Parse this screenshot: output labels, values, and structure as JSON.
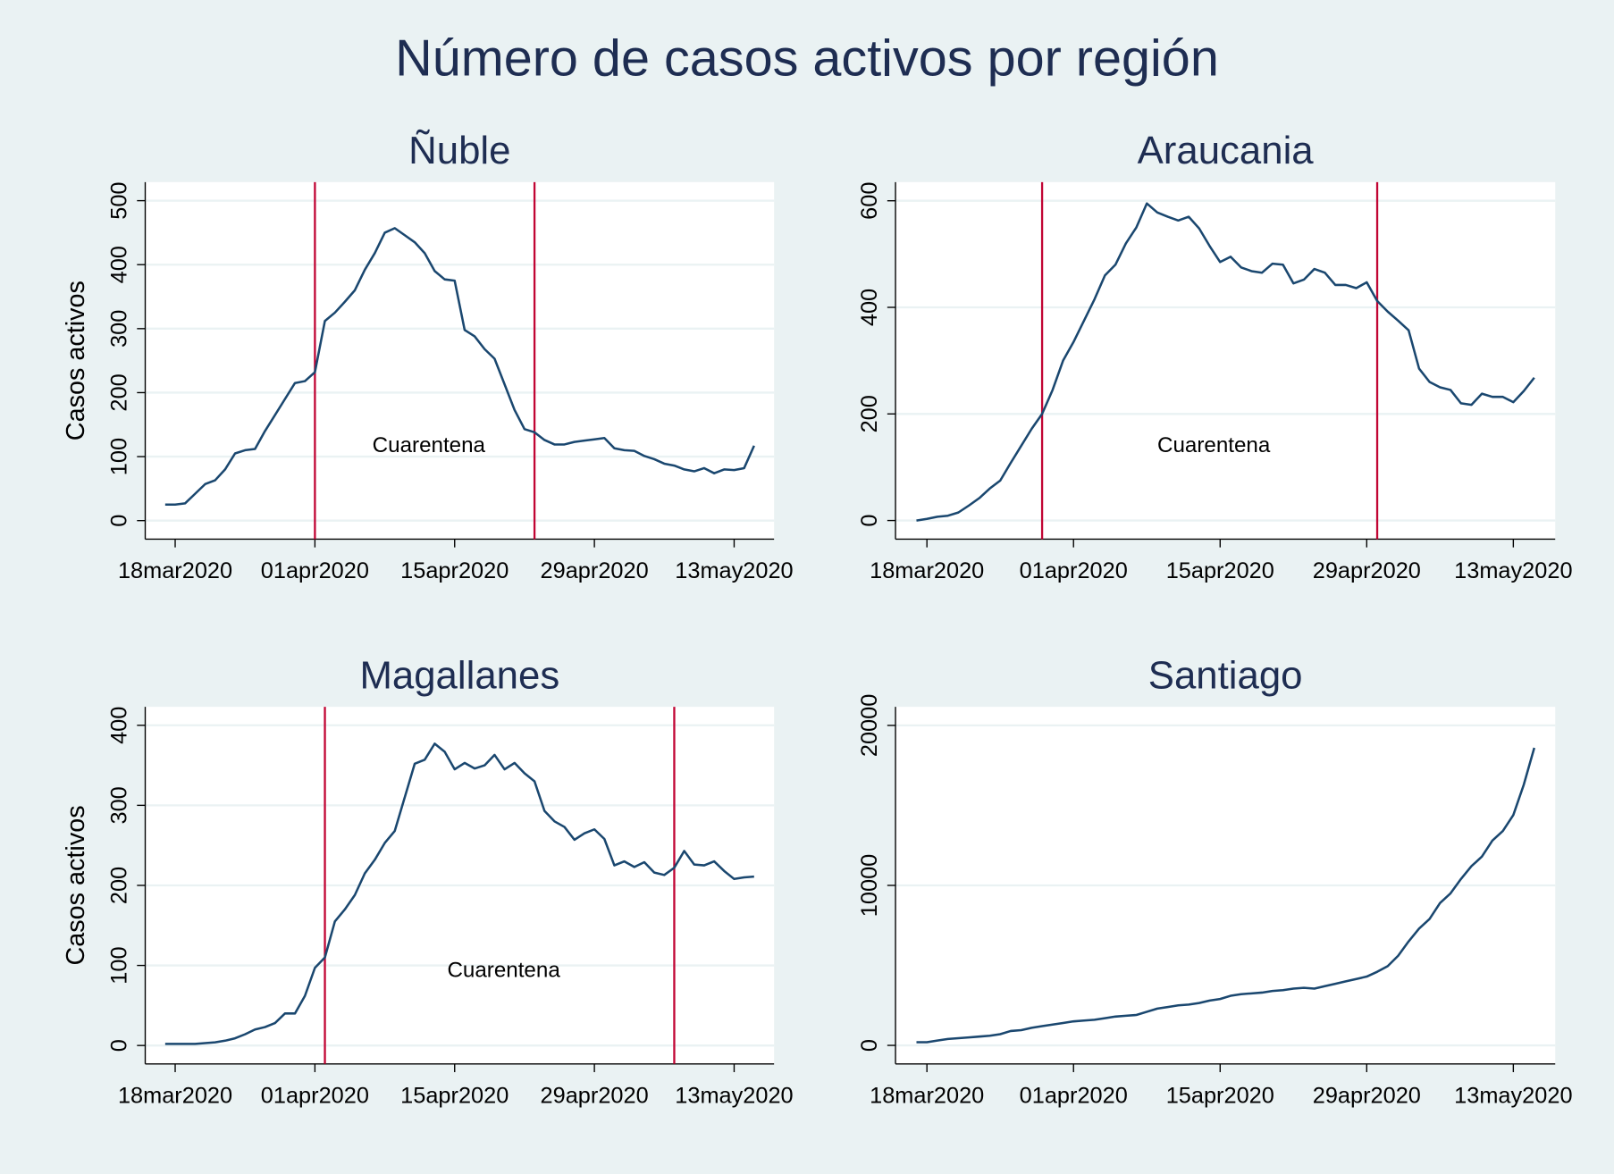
{
  "chart_data": [
    {
      "type": "line",
      "title": "Ñuble",
      "ylabel": "Casos activos",
      "annotation": "Cuarentena",
      "x": [
        "2020-03-17",
        "2020-03-18",
        "2020-03-19",
        "2020-03-20",
        "2020-03-21",
        "2020-03-22",
        "2020-03-23",
        "2020-03-24",
        "2020-03-25",
        "2020-03-26",
        "2020-03-27",
        "2020-03-28",
        "2020-03-29",
        "2020-03-30",
        "2020-03-31",
        "2020-04-01",
        "2020-04-02",
        "2020-04-03",
        "2020-04-04",
        "2020-04-05",
        "2020-04-06",
        "2020-04-07",
        "2020-04-08",
        "2020-04-09",
        "2020-04-10",
        "2020-04-11",
        "2020-04-12",
        "2020-04-13",
        "2020-04-14",
        "2020-04-15",
        "2020-04-16",
        "2020-04-17",
        "2020-04-18",
        "2020-04-19",
        "2020-04-20",
        "2020-04-21",
        "2020-04-22",
        "2020-04-23",
        "2020-04-24",
        "2020-04-25",
        "2020-04-26",
        "2020-04-27",
        "2020-04-28",
        "2020-04-29",
        "2020-04-30",
        "2020-05-01",
        "2020-05-02",
        "2020-05-03",
        "2020-05-04",
        "2020-05-05",
        "2020-05-06",
        "2020-05-07",
        "2020-05-08",
        "2020-05-09",
        "2020-05-10",
        "2020-05-11",
        "2020-05-12",
        "2020-05-13",
        "2020-05-14",
        "2020-05-15"
      ],
      "series": [
        {
          "name": "Casos activos",
          "color": "#1a476f",
          "values": [
            25,
            25,
            27,
            42,
            57,
            63,
            80,
            105,
            110,
            112,
            140,
            165,
            190,
            215,
            218,
            232,
            312,
            325,
            342,
            360,
            392,
            418,
            450,
            457,
            446,
            435,
            418,
            390,
            377,
            375,
            298,
            288,
            268,
            253,
            213,
            173,
            143,
            138,
            126,
            119,
            119,
            123,
            125,
            127,
            129,
            113,
            110,
            109,
            101,
            96,
            89,
            86,
            80,
            77,
            82,
            74,
            80,
            79,
            82,
            117
          ]
        }
      ],
      "vlines": [
        "2020-04-01",
        "2020-04-23"
      ],
      "vline_color": "#c10534",
      "xlim": [
        "2020-03-15",
        "2020-05-17"
      ],
      "xticks": [
        {
          "value": "2020-03-18",
          "label": "18mar2020"
        },
        {
          "value": "2020-04-01",
          "label": "01apr2020"
        },
        {
          "value": "2020-04-15",
          "label": "15apr2020"
        },
        {
          "value": "2020-04-29",
          "label": "29apr2020"
        },
        {
          "value": "2020-05-13",
          "label": "13may2020"
        }
      ],
      "ylim": [
        -29,
        529
      ],
      "yticks": [
        0,
        100,
        200,
        300,
        400,
        500
      ],
      "grid": true
    },
    {
      "type": "line",
      "title": "Araucania",
      "annotation": "Cuarentena",
      "x": [
        "2020-03-17",
        "2020-03-18",
        "2020-03-19",
        "2020-03-20",
        "2020-03-21",
        "2020-03-22",
        "2020-03-23",
        "2020-03-24",
        "2020-03-25",
        "2020-03-26",
        "2020-03-27",
        "2020-03-28",
        "2020-03-29",
        "2020-03-30",
        "2020-03-31",
        "2020-04-01",
        "2020-04-02",
        "2020-04-03",
        "2020-04-04",
        "2020-04-05",
        "2020-04-06",
        "2020-04-07",
        "2020-04-08",
        "2020-04-09",
        "2020-04-10",
        "2020-04-11",
        "2020-04-12",
        "2020-04-13",
        "2020-04-14",
        "2020-04-15",
        "2020-04-16",
        "2020-04-17",
        "2020-04-18",
        "2020-04-19",
        "2020-04-20",
        "2020-04-21",
        "2020-04-22",
        "2020-04-23",
        "2020-04-24",
        "2020-04-25",
        "2020-04-26",
        "2020-04-27",
        "2020-04-28",
        "2020-04-29",
        "2020-04-30",
        "2020-05-01",
        "2020-05-02",
        "2020-05-03",
        "2020-05-04",
        "2020-05-05",
        "2020-05-06",
        "2020-05-07",
        "2020-05-08",
        "2020-05-09",
        "2020-05-10",
        "2020-05-11",
        "2020-05-12",
        "2020-05-13",
        "2020-05-14",
        "2020-05-15"
      ],
      "series": [
        {
          "name": "Casos activos",
          "color": "#1a476f",
          "values": [
            0,
            3,
            7,
            9,
            15,
            28,
            42,
            60,
            75,
            108,
            140,
            172,
            200,
            245,
            300,
            335,
            375,
            415,
            460,
            480,
            520,
            550,
            595,
            578,
            570,
            563,
            570,
            548,
            515,
            485,
            495,
            475,
            468,
            465,
            482,
            480,
            445,
            452,
            472,
            465,
            442,
            442,
            436,
            447,
            412,
            392,
            375,
            357,
            285,
            260,
            250,
            245,
            220,
            217,
            238,
            232,
            232,
            222,
            243,
            268
          ]
        }
      ],
      "vlines": [
        "2020-03-29",
        "2020-04-30"
      ],
      "vline_color": "#c10534",
      "xlim": [
        "2020-03-15",
        "2020-05-17"
      ],
      "xticks": [
        {
          "value": "2020-03-18",
          "label": "18mar2020"
        },
        {
          "value": "2020-04-01",
          "label": "01apr2020"
        },
        {
          "value": "2020-04-15",
          "label": "15apr2020"
        },
        {
          "value": "2020-04-29",
          "label": "29apr2020"
        },
        {
          "value": "2020-05-13",
          "label": "13may2020"
        }
      ],
      "ylim": [
        -35,
        635
      ],
      "yticks": [
        0,
        200,
        400,
        600
      ],
      "grid": true
    },
    {
      "type": "line",
      "title": "Magallanes",
      "ylabel": "Casos activos",
      "annotation": "Cuarentena",
      "x": [
        "2020-03-17",
        "2020-03-18",
        "2020-03-19",
        "2020-03-20",
        "2020-03-21",
        "2020-03-22",
        "2020-03-23",
        "2020-03-24",
        "2020-03-25",
        "2020-03-26",
        "2020-03-27",
        "2020-03-28",
        "2020-03-29",
        "2020-03-30",
        "2020-03-31",
        "2020-04-01",
        "2020-04-02",
        "2020-04-03",
        "2020-04-04",
        "2020-04-05",
        "2020-04-06",
        "2020-04-07",
        "2020-04-08",
        "2020-04-09",
        "2020-04-10",
        "2020-04-11",
        "2020-04-12",
        "2020-04-13",
        "2020-04-14",
        "2020-04-15",
        "2020-04-16",
        "2020-04-17",
        "2020-04-18",
        "2020-04-19",
        "2020-04-20",
        "2020-04-21",
        "2020-04-22",
        "2020-04-23",
        "2020-04-24",
        "2020-04-25",
        "2020-04-26",
        "2020-04-27",
        "2020-04-28",
        "2020-04-29",
        "2020-04-30",
        "2020-05-01",
        "2020-05-02",
        "2020-05-03",
        "2020-05-04",
        "2020-05-05",
        "2020-05-06",
        "2020-05-07",
        "2020-05-08",
        "2020-05-09",
        "2020-05-10",
        "2020-05-11",
        "2020-05-12",
        "2020-05-13",
        "2020-05-14",
        "2020-05-15"
      ],
      "series": [
        {
          "name": "Casos activos",
          "color": "#1a476f",
          "values": [
            2,
            2,
            2,
            2,
            3,
            4,
            6,
            9,
            14,
            20,
            23,
            28,
            40,
            40,
            62,
            97,
            110,
            155,
            170,
            188,
            215,
            232,
            253,
            268,
            310,
            352,
            357,
            377,
            367,
            345,
            353,
            346,
            350,
            363,
            345,
            353,
            340,
            330,
            293,
            280,
            273,
            257,
            265,
            270,
            258,
            225,
            230,
            223,
            229,
            216,
            213,
            222,
            243,
            226,
            225,
            230,
            218,
            208,
            210,
            211
          ]
        }
      ],
      "vlines": [
        "2020-04-02",
        "2020-05-07"
      ],
      "vline_color": "#c10534",
      "xlim": [
        "2020-03-15",
        "2020-05-17"
      ],
      "xticks": [
        {
          "value": "2020-03-18",
          "label": "18mar2020"
        },
        {
          "value": "2020-04-01",
          "label": "01apr2020"
        },
        {
          "value": "2020-04-15",
          "label": "15apr2020"
        },
        {
          "value": "2020-04-29",
          "label": "29apr2020"
        },
        {
          "value": "2020-05-13",
          "label": "13may2020"
        }
      ],
      "ylim": [
        -23,
        423
      ],
      "yticks": [
        0,
        100,
        200,
        300,
        400
      ],
      "grid": true
    },
    {
      "type": "line",
      "title": "Santiago",
      "x": [
        "2020-03-17",
        "2020-03-18",
        "2020-03-19",
        "2020-03-20",
        "2020-03-21",
        "2020-03-22",
        "2020-03-23",
        "2020-03-24",
        "2020-03-25",
        "2020-03-26",
        "2020-03-27",
        "2020-03-28",
        "2020-03-29",
        "2020-03-30",
        "2020-03-31",
        "2020-04-01",
        "2020-04-02",
        "2020-04-03",
        "2020-04-04",
        "2020-04-05",
        "2020-04-06",
        "2020-04-07",
        "2020-04-08",
        "2020-04-09",
        "2020-04-10",
        "2020-04-11",
        "2020-04-12",
        "2020-04-13",
        "2020-04-14",
        "2020-04-15",
        "2020-04-16",
        "2020-04-17",
        "2020-04-18",
        "2020-04-19",
        "2020-04-20",
        "2020-04-21",
        "2020-04-22",
        "2020-04-23",
        "2020-04-24",
        "2020-04-25",
        "2020-04-26",
        "2020-04-27",
        "2020-04-28",
        "2020-04-29",
        "2020-04-30",
        "2020-05-01",
        "2020-05-02",
        "2020-05-03",
        "2020-05-04",
        "2020-05-05",
        "2020-05-06",
        "2020-05-07",
        "2020-05-08",
        "2020-05-09",
        "2020-05-10",
        "2020-05-11",
        "2020-05-12",
        "2020-05-13",
        "2020-05-14",
        "2020-05-15"
      ],
      "series": [
        {
          "name": "Casos activos",
          "color": "#1a476f",
          "values": [
            200,
            200,
            300,
            400,
            450,
            500,
            550,
            600,
            700,
            900,
            950,
            1100,
            1200,
            1300,
            1400,
            1500,
            1550,
            1600,
            1700,
            1800,
            1850,
            1900,
            2100,
            2300,
            2400,
            2500,
            2550,
            2650,
            2800,
            2900,
            3100,
            3200,
            3250,
            3300,
            3400,
            3450,
            3550,
            3600,
            3550,
            3700,
            3850,
            4000,
            4150,
            4300,
            4600,
            4950,
            5600,
            6500,
            7300,
            7900,
            8900,
            9500,
            10400,
            11200,
            11800,
            12800,
            13400,
            14400,
            16300,
            18600
          ]
        }
      ],
      "xlim": [
        "2020-03-15",
        "2020-05-17"
      ],
      "xticks": [
        {
          "value": "2020-03-18",
          "label": "18mar2020"
        },
        {
          "value": "2020-04-01",
          "label": "01apr2020"
        },
        {
          "value": "2020-04-15",
          "label": "15apr2020"
        },
        {
          "value": "2020-04-29",
          "label": "29apr2020"
        },
        {
          "value": "2020-05-13",
          "label": "13may2020"
        }
      ],
      "ylim": [
        -1158,
        21158
      ],
      "yticks": [
        0,
        10000,
        20000
      ],
      "grid": true
    }
  ],
  "title": "Número de casos activos por región"
}
